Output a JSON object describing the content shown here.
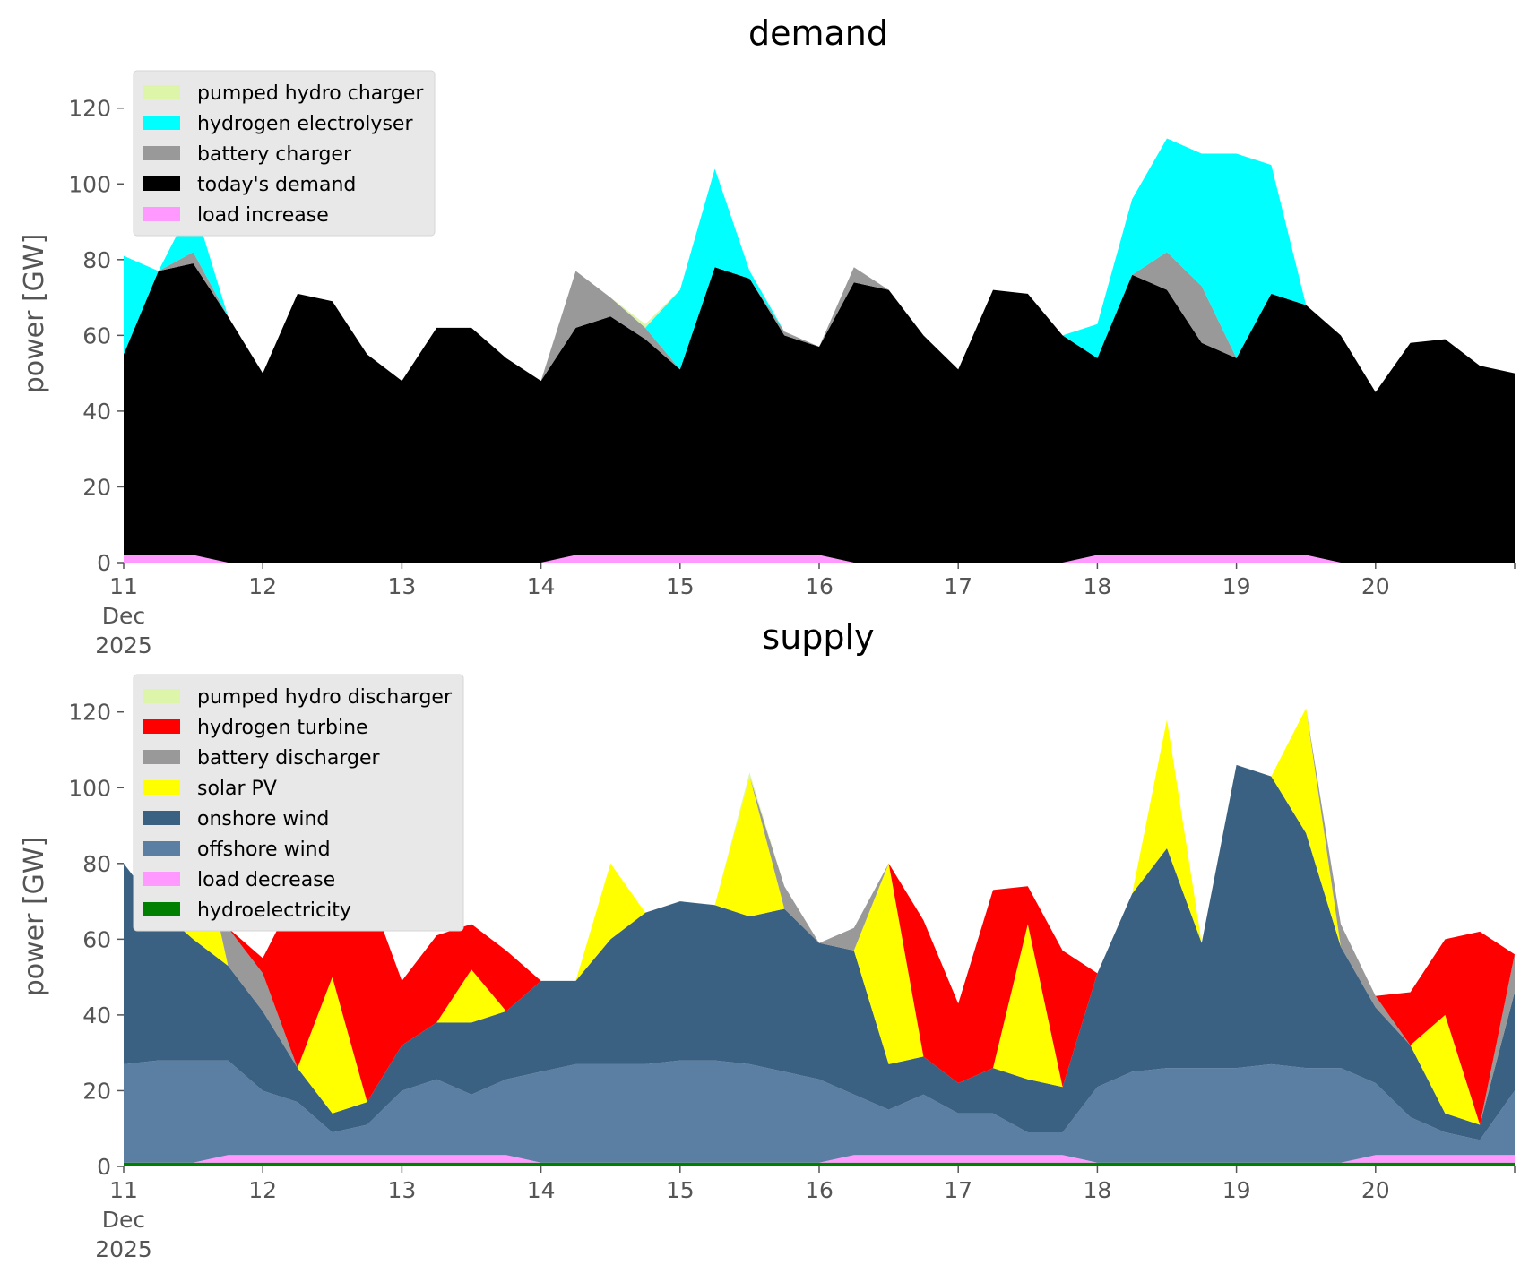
{
  "chart_data": [
    {
      "type": "area",
      "stacked": true,
      "title": "demand",
      "xlabel": "",
      "ylabel": "power [GW]",
      "ylim": [
        0,
        132
      ],
      "yticks": [
        0,
        20,
        40,
        60,
        80,
        100,
        120
      ],
      "xlim": [
        "2025-12-11",
        "2025-12-21"
      ],
      "xticks": [
        "11",
        "12",
        "13",
        "14",
        "15",
        "16",
        "17",
        "18",
        "19",
        "20"
      ],
      "xtick_sub": [
        "Dec",
        "2025"
      ],
      "grid": false,
      "legend": "top-left",
      "legend_order": [
        "pumped hydro charger",
        "hydrogen electrolyser",
        "battery charger",
        "today's demand",
        "load increase"
      ],
      "x": [
        "2025-12-11 00:00",
        "2025-12-11 06:00",
        "2025-12-11 12:00",
        "2025-12-11 18:00",
        "2025-12-12 00:00",
        "2025-12-12 06:00",
        "2025-12-12 12:00",
        "2025-12-12 18:00",
        "2025-12-13 00:00",
        "2025-12-13 06:00",
        "2025-12-13 12:00",
        "2025-12-13 18:00",
        "2025-12-14 00:00",
        "2025-12-14 06:00",
        "2025-12-14 12:00",
        "2025-12-14 18:00",
        "2025-12-15 00:00",
        "2025-12-15 06:00",
        "2025-12-15 12:00",
        "2025-12-15 18:00",
        "2025-12-16 00:00",
        "2025-12-16 06:00",
        "2025-12-16 12:00",
        "2025-12-16 18:00",
        "2025-12-17 00:00",
        "2025-12-17 06:00",
        "2025-12-17 12:00",
        "2025-12-17 18:00",
        "2025-12-18 00:00",
        "2025-12-18 06:00",
        "2025-12-18 12:00",
        "2025-12-18 18:00",
        "2025-12-19 00:00",
        "2025-12-19 06:00",
        "2025-12-19 12:00",
        "2025-12-19 18:00",
        "2025-12-20 00:00",
        "2025-12-20 06:00",
        "2025-12-20 12:00",
        "2025-12-20 18:00",
        "2025-12-21 00:00"
      ],
      "series": [
        {
          "name": "load increase",
          "color": "#ff99ff",
          "values": [
            2,
            2,
            2,
            0,
            0,
            0,
            0,
            0,
            0,
            0,
            0,
            0,
            0,
            2,
            2,
            2,
            2,
            2,
            2,
            2,
            2,
            0,
            0,
            0,
            0,
            0,
            0,
            0,
            2,
            2,
            2,
            2,
            2,
            2,
            2,
            0,
            0,
            0,
            0,
            0,
            0
          ]
        },
        {
          "name": "today's demand",
          "color": "#000000",
          "values": [
            53,
            75,
            77,
            65,
            50,
            71,
            69,
            55,
            48,
            62,
            62,
            54,
            48,
            60,
            63,
            57,
            49,
            76,
            73,
            58,
            55,
            74,
            72,
            60,
            51,
            72,
            71,
            60,
            52,
            74,
            70,
            56,
            52,
            69,
            66,
            60,
            45,
            58,
            59,
            52,
            50
          ]
        },
        {
          "name": "battery charger",
          "color": "#999999",
          "values": [
            0,
            0,
            3,
            0,
            0,
            0,
            0,
            0,
            0,
            0,
            0,
            0,
            0,
            15,
            5,
            3,
            0,
            0,
            0,
            1,
            0,
            4,
            0,
            0,
            0,
            0,
            0,
            0,
            0,
            0,
            10,
            15,
            0,
            0,
            0,
            0,
            0,
            0,
            0,
            0,
            0
          ]
        },
        {
          "name": "hydrogen electrolyser",
          "color": "#00ffff",
          "values": [
            26,
            0,
            13,
            0,
            0,
            0,
            0,
            0,
            0,
            0,
            0,
            0,
            0,
            0,
            0,
            0,
            21,
            26,
            2,
            0,
            0,
            0,
            0,
            0,
            0,
            0,
            0,
            0,
            9,
            20,
            30,
            35,
            54,
            34,
            0,
            0,
            0,
            0,
            0,
            0,
            0
          ]
        },
        {
          "name": "pumped hydro charger",
          "color": "#ddf5a9",
          "values": [
            0,
            0,
            0,
            0,
            0,
            0,
            0,
            0,
            0,
            0,
            0,
            0,
            0,
            0,
            0,
            1,
            0,
            0,
            0,
            0,
            0,
            0,
            0,
            0,
            0,
            0,
            0,
            0,
            0,
            0,
            0,
            0,
            0,
            0,
            0,
            0,
            0,
            0,
            0,
            0,
            0
          ]
        }
      ]
    },
    {
      "type": "area",
      "stacked": true,
      "title": "supply",
      "xlabel": "",
      "ylabel": "power [GW]",
      "ylim": [
        0,
        132
      ],
      "yticks": [
        0,
        20,
        40,
        60,
        80,
        100,
        120
      ],
      "xlim": [
        "2025-12-11",
        "2025-12-21"
      ],
      "xticks": [
        "11",
        "12",
        "13",
        "14",
        "15",
        "16",
        "17",
        "18",
        "19",
        "20"
      ],
      "xtick_sub": [
        "Dec",
        "2025"
      ],
      "grid": false,
      "legend": "top-left",
      "legend_order": [
        "pumped hydro discharger",
        "hydrogen turbine",
        "battery discharger",
        "solar PV",
        "onshore wind",
        "offshore wind",
        "load decrease",
        "hydroelectricity"
      ],
      "x": [
        "2025-12-11 00:00",
        "2025-12-11 06:00",
        "2025-12-11 12:00",
        "2025-12-11 18:00",
        "2025-12-12 00:00",
        "2025-12-12 06:00",
        "2025-12-12 12:00",
        "2025-12-12 18:00",
        "2025-12-13 00:00",
        "2025-12-13 06:00",
        "2025-12-13 12:00",
        "2025-12-13 18:00",
        "2025-12-14 00:00",
        "2025-12-14 06:00",
        "2025-12-14 12:00",
        "2025-12-14 18:00",
        "2025-12-15 00:00",
        "2025-12-15 06:00",
        "2025-12-15 12:00",
        "2025-12-15 18:00",
        "2025-12-16 00:00",
        "2025-12-16 06:00",
        "2025-12-16 12:00",
        "2025-12-16 18:00",
        "2025-12-17 00:00",
        "2025-12-17 06:00",
        "2025-12-17 12:00",
        "2025-12-17 18:00",
        "2025-12-18 00:00",
        "2025-12-18 06:00",
        "2025-12-18 12:00",
        "2025-12-18 18:00",
        "2025-12-19 00:00",
        "2025-12-19 06:00",
        "2025-12-19 12:00",
        "2025-12-19 18:00",
        "2025-12-20 00:00",
        "2025-12-20 06:00",
        "2025-12-20 12:00",
        "2025-12-20 18:00",
        "2025-12-21 00:00"
      ],
      "series": [
        {
          "name": "hydroelectricity",
          "color": "#008000",
          "values": [
            1,
            1,
            1,
            1,
            1,
            1,
            1,
            1,
            1,
            1,
            1,
            1,
            1,
            1,
            1,
            1,
            1,
            1,
            1,
            1,
            1,
            1,
            1,
            1,
            1,
            1,
            1,
            1,
            1,
            1,
            1,
            1,
            1,
            1,
            1,
            1,
            1,
            1,
            1,
            1,
            1
          ]
        },
        {
          "name": "load decrease",
          "color": "#ff99ff",
          "values": [
            0,
            0,
            0,
            2,
            2,
            2,
            2,
            2,
            2,
            2,
            2,
            2,
            0,
            0,
            0,
            0,
            0,
            0,
            0,
            0,
            0,
            2,
            2,
            2,
            2,
            2,
            2,
            2,
            0,
            0,
            0,
            0,
            0,
            0,
            0,
            0,
            2,
            2,
            2,
            2,
            2
          ]
        },
        {
          "name": "offshore wind",
          "color": "#5b7fa3",
          "values": [
            26,
            27,
            27,
            25,
            17,
            14,
            6,
            8,
            17,
            20,
            16,
            20,
            24,
            26,
            26,
            26,
            27,
            27,
            26,
            24,
            22,
            16,
            12,
            16,
            11,
            11,
            6,
            6,
            20,
            24,
            25,
            25,
            25,
            26,
            25,
            25,
            19,
            10,
            6,
            4,
            17
          ]
        },
        {
          "name": "onshore wind",
          "color": "#3b6182",
          "values": [
            53,
            40,
            32,
            25,
            21,
            9,
            5,
            6,
            12,
            15,
            19,
            18,
            24,
            22,
            33,
            40,
            42,
            41,
            39,
            43,
            36,
            38,
            12,
            10,
            8,
            12,
            14,
            12,
            30,
            47,
            58,
            33,
            80,
            76,
            62,
            32,
            20,
            19,
            5,
            4,
            26
          ]
        },
        {
          "name": "solar PV",
          "color": "#ffff00",
          "values": [
            0,
            0,
            35,
            0,
            0,
            0,
            36,
            0,
            0,
            0,
            14,
            0,
            0,
            0,
            20,
            0,
            0,
            0,
            37,
            0,
            0,
            0,
            53,
            0,
            0,
            0,
            41,
            0,
            0,
            0,
            34,
            0,
            0,
            0,
            33,
            0,
            0,
            0,
            26,
            0,
            0
          ]
        },
        {
          "name": "battery discharger",
          "color": "#999999",
          "values": [
            0,
            0,
            0,
            10,
            10,
            0,
            0,
            0,
            0,
            0,
            0,
            0,
            0,
            0,
            0,
            0,
            0,
            0,
            0,
            6,
            0,
            6,
            0,
            0,
            0,
            0,
            0,
            0,
            0,
            0,
            0,
            0,
            0,
            0,
            0,
            6,
            3,
            0,
            0,
            0,
            10
          ]
        },
        {
          "name": "hydrogen turbine",
          "color": "#ff0000",
          "values": [
            0,
            0,
            0,
            0,
            4,
            47,
            20,
            57,
            17,
            23,
            12,
            16,
            0,
            0,
            0,
            0,
            0,
            0,
            0,
            0,
            0,
            0,
            0,
            36,
            21,
            47,
            10,
            36,
            0,
            0,
            0,
            0,
            0,
            0,
            0,
            0,
            0,
            14,
            20,
            51,
            0
          ]
        },
        {
          "name": "pumped hydro discharger",
          "color": "#ddf5a9",
          "values": [
            0,
            0,
            0,
            0,
            0,
            0,
            0,
            0,
            0,
            0,
            0,
            0,
            0,
            0,
            0,
            0,
            0,
            0,
            1,
            0,
            0,
            0,
            0,
            0,
            0,
            0,
            0,
            0,
            0,
            0,
            0,
            0,
            0,
            0,
            0,
            0,
            0,
            0,
            0,
            0,
            0
          ]
        }
      ]
    }
  ]
}
